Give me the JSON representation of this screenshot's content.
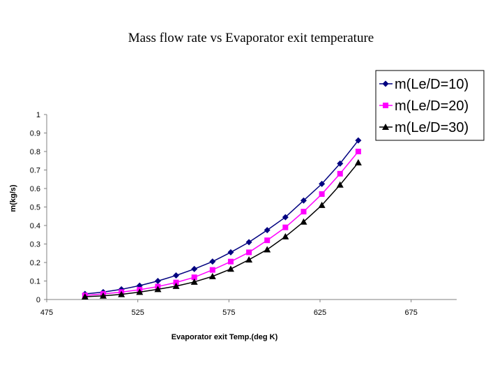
{
  "chart_data": {
    "type": "line",
    "title": "Mass flow rate vs Evaporator exit temperature",
    "xlabel": "Evaporator exit Temp.(deg K)",
    "ylabel": "m(kg/s)",
    "xlim": [
      475,
      700
    ],
    "ylim": [
      0,
      1
    ],
    "xticks": [
      475,
      525,
      575,
      625,
      675
    ],
    "yticks": [
      0,
      0.1,
      0.2,
      0.3,
      0.4,
      0.5,
      0.6,
      0.7,
      0.8,
      0.9,
      1
    ],
    "grid": false,
    "legend_position": "top-right",
    "x": [
      496,
      506,
      516,
      526,
      536,
      546,
      556,
      566,
      576,
      586,
      596,
      606,
      616,
      626,
      636,
      646
    ],
    "series": [
      {
        "name": "m(Le/D=10)",
        "color": "#000080",
        "marker": "diamond",
        "values": [
          0.03,
          0.04,
          0.055,
          0.075,
          0.1,
          0.13,
          0.165,
          0.205,
          0.255,
          0.31,
          0.375,
          0.445,
          0.535,
          0.625,
          0.735,
          0.86
        ]
      },
      {
        "name": "m(Le/D=20)",
        "color": "#ff00ff",
        "marker": "square",
        "values": [
          0.022,
          0.03,
          0.04,
          0.053,
          0.07,
          0.092,
          0.12,
          0.16,
          0.205,
          0.255,
          0.32,
          0.39,
          0.475,
          0.57,
          0.68,
          0.8
        ]
      },
      {
        "name": "m(Le/D=30)",
        "color": "#000000",
        "marker": "triangle",
        "values": [
          0.015,
          0.02,
          0.028,
          0.04,
          0.055,
          0.072,
          0.095,
          0.125,
          0.165,
          0.215,
          0.27,
          0.34,
          0.42,
          0.51,
          0.62,
          0.74
        ]
      }
    ]
  }
}
